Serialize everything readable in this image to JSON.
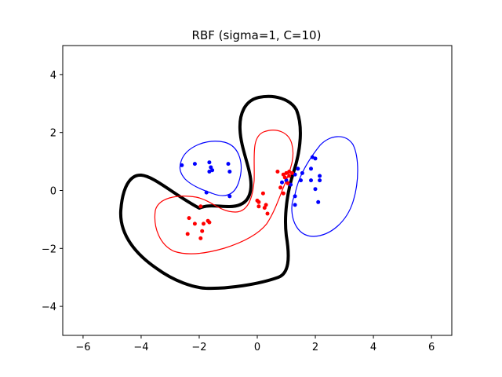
{
  "chart_data": {
    "type": "scatter",
    "title": "RBF (sigma=1, C=10)",
    "xlabel": "",
    "ylabel": "",
    "xlim": [
      -6.7,
      6.7
    ],
    "ylim": [
      -5,
      5
    ],
    "xticks": [
      -6,
      -4,
      -2,
      0,
      2,
      4,
      6
    ],
    "yticks": [
      -4,
      -2,
      0,
      2,
      4
    ],
    "xtick_labels": [
      "−6",
      "−4",
      "−2",
      "0",
      "2",
      "4",
      "6"
    ],
    "ytick_labels": [
      "−4",
      "−2",
      "0",
      "2",
      "4"
    ],
    "grid": false,
    "colors": {
      "class_pos": "#0000ff",
      "class_neg": "#ff0000",
      "boundary": "#000000"
    },
    "series": [
      {
        "color": "#0000ff",
        "points": [
          [
            -2.6,
            0.87
          ],
          [
            -2.15,
            0.92
          ],
          [
            -1.65,
            0.97
          ],
          [
            -1.6,
            0.8
          ],
          [
            -1.55,
            0.7
          ],
          [
            -1.65,
            0.65
          ],
          [
            -1.0,
            0.92
          ],
          [
            -0.95,
            0.65
          ],
          [
            -1.75,
            -0.07
          ],
          [
            -0.95,
            -0.2
          ],
          [
            0.85,
            0.28
          ],
          [
            1.0,
            0.35
          ],
          [
            1.15,
            0.2
          ],
          [
            1.3,
            0.55
          ],
          [
            1.4,
            0.75
          ],
          [
            1.55,
            0.6
          ],
          [
            1.5,
            0.35
          ],
          [
            1.3,
            -0.2
          ],
          [
            1.3,
            -0.5
          ],
          [
            1.85,
            0.75
          ],
          [
            1.9,
            1.15
          ],
          [
            2.0,
            1.1
          ],
          [
            1.85,
            0.35
          ],
          [
            2.0,
            0.05
          ],
          [
            2.15,
            0.5
          ],
          [
            2.15,
            0.35
          ],
          [
            2.1,
            -0.4
          ]
        ]
      },
      {
        "color": "#ff0000",
        "points": [
          [
            0.7,
            0.65
          ],
          [
            0.9,
            0.55
          ],
          [
            1.0,
            0.6
          ],
          [
            1.1,
            0.65
          ],
          [
            1.2,
            0.6
          ],
          [
            1.1,
            0.5
          ],
          [
            0.95,
            0.45
          ],
          [
            1.05,
            0.25
          ],
          [
            0.8,
            0.1
          ],
          [
            0.9,
            -0.1
          ],
          [
            0.2,
            -0.1
          ],
          [
            0.3,
            -0.5
          ],
          [
            0.35,
            -0.8
          ],
          [
            0.25,
            -0.6
          ],
          [
            0.05,
            -0.4
          ],
          [
            0.05,
            -0.55
          ],
          [
            0.0,
            -0.35
          ],
          [
            -1.95,
            -0.55
          ],
          [
            -2.35,
            -0.95
          ],
          [
            -2.15,
            -1.15
          ],
          [
            -1.85,
            -1.15
          ],
          [
            -1.7,
            -1.05
          ],
          [
            -1.65,
            -1.1
          ],
          [
            -1.9,
            -1.4
          ],
          [
            -2.4,
            -1.5
          ],
          [
            -1.95,
            -1.65
          ]
        ]
      }
    ]
  }
}
